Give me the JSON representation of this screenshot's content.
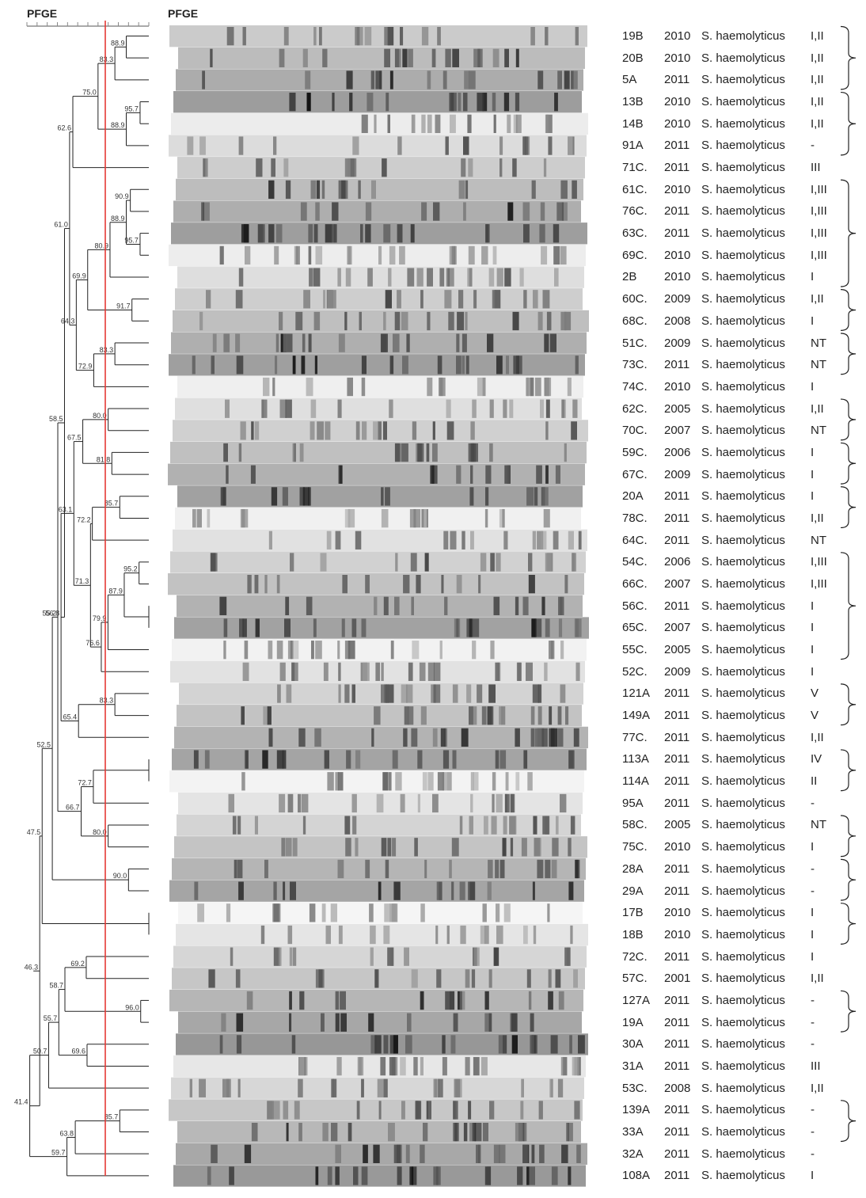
{
  "figure": {
    "dendrogram_title": "PFGE",
    "gel_title": "PFGE"
  },
  "isolates": [
    {
      "id": "19B",
      "year": "2010",
      "species": "S. haemolyticus",
      "type": "I,II"
    },
    {
      "id": "20B",
      "year": "2010",
      "species": "S. haemolyticus",
      "type": "I,II"
    },
    {
      "id": "5A",
      "year": "2011",
      "species": "S. haemolyticus",
      "type": "I,II"
    },
    {
      "id": "13B",
      "year": "2010",
      "species": "S. haemolyticus",
      "type": "I,II"
    },
    {
      "id": "14B",
      "year": "2010",
      "species": "S. haemolyticus",
      "type": "I,II"
    },
    {
      "id": "91A",
      "year": "2011",
      "species": "S. haemolyticus",
      "type": "-"
    },
    {
      "id": "71C.",
      "year": "2011",
      "species": "S. haemolyticus",
      "type": "III"
    },
    {
      "id": "61C.",
      "year": "2010",
      "species": "S. haemolyticus",
      "type": "I,III"
    },
    {
      "id": "76C.",
      "year": "2011",
      "species": "S. haemolyticus",
      "type": "I,III"
    },
    {
      "id": "63C.",
      "year": "2011",
      "species": "S. haemolyticus",
      "type": "I,III"
    },
    {
      "id": "69C.",
      "year": "2010",
      "species": "S. haemolyticus",
      "type": "I,III"
    },
    {
      "id": "2B",
      "year": "2010",
      "species": "S. haemolyticus",
      "type": "I"
    },
    {
      "id": "60C.",
      "year": "2009",
      "species": "S. haemolyticus",
      "type": "I,II"
    },
    {
      "id": "68C.",
      "year": "2008",
      "species": "S. haemolyticus",
      "type": "I"
    },
    {
      "id": "51C.",
      "year": "2009",
      "species": "S. haemolyticus",
      "type": "NT"
    },
    {
      "id": "73C.",
      "year": "2011",
      "species": "S. haemolyticus",
      "type": "NT"
    },
    {
      "id": "74C.",
      "year": "2010",
      "species": "S. haemolyticus",
      "type": "I"
    },
    {
      "id": "62C.",
      "year": "2005",
      "species": "S. haemolyticus",
      "type": "I,II"
    },
    {
      "id": "70C.",
      "year": "2007",
      "species": "S. haemolyticus",
      "type": "NT"
    },
    {
      "id": "59C.",
      "year": "2006",
      "species": "S. haemolyticus",
      "type": "I"
    },
    {
      "id": "67C.",
      "year": "2009",
      "species": "S. haemolyticus",
      "type": "I"
    },
    {
      "id": "20A",
      "year": "2011",
      "species": "S. haemolyticus",
      "type": "I"
    },
    {
      "id": "78C.",
      "year": "2011",
      "species": "S. haemolyticus",
      "type": "I,II"
    },
    {
      "id": "64C.",
      "year": "2011",
      "species": "S. haemolyticus",
      "type": "NT"
    },
    {
      "id": "54C.",
      "year": "2006",
      "species": "S. haemolyticus",
      "type": "I,III"
    },
    {
      "id": "66C.",
      "year": "2007",
      "species": "S. haemolyticus",
      "type": "I,III"
    },
    {
      "id": "56C.",
      "year": "2011",
      "species": "S. haemolyticus",
      "type": "I"
    },
    {
      "id": "65C.",
      "year": "2007",
      "species": "S. haemolyticus",
      "type": "I"
    },
    {
      "id": "55C.",
      "year": "2005",
      "species": "S. haemolyticus",
      "type": "I"
    },
    {
      "id": "52C.",
      "year": "2009",
      "species": "S. haemolyticus",
      "type": "I"
    },
    {
      "id": "121A",
      "year": "2011",
      "species": "S. haemolyticus",
      "type": "V"
    },
    {
      "id": "149A",
      "year": "2011",
      "species": "S. haemolyticus",
      "type": "V"
    },
    {
      "id": "77C.",
      "year": "2011",
      "species": "S. haemolyticus",
      "type": "I,II"
    },
    {
      "id": "113A",
      "year": "2011",
      "species": "S. haemolyticus",
      "type": "IV"
    },
    {
      "id": "114A",
      "year": "2011",
      "species": "S. haemolyticus",
      "type": "II"
    },
    {
      "id": "95A",
      "year": "2011",
      "species": "S. haemolyticus",
      "type": "-"
    },
    {
      "id": "58C.",
      "year": "2005",
      "species": "S. haemolyticus",
      "type": "NT"
    },
    {
      "id": "75C.",
      "year": "2010",
      "species": "S. haemolyticus",
      "type": "I"
    },
    {
      "id": "28A",
      "year": "2011",
      "species": "S. haemolyticus",
      "type": "-"
    },
    {
      "id": "29A",
      "year": "2011",
      "species": "S. haemolyticus",
      "type": "-"
    },
    {
      "id": "17B",
      "year": "2010",
      "species": "S. haemolyticus",
      "type": "I"
    },
    {
      "id": "18B",
      "year": "2010",
      "species": "S. haemolyticus",
      "type": "I"
    },
    {
      "id": "72C.",
      "year": "2011",
      "species": "S. haemolyticus",
      "type": "I"
    },
    {
      "id": "57C.",
      "year": "2001",
      "species": "S. haemolyticus",
      "type": "I,II"
    },
    {
      "id": "127A",
      "year": "2011",
      "species": "S. haemolyticus",
      "type": "-"
    },
    {
      "id": "19A",
      "year": "2011",
      "species": "S. haemolyticus",
      "type": "-"
    },
    {
      "id": "30A",
      "year": "2011",
      "species": "S. haemolyticus",
      "type": "-"
    },
    {
      "id": "31A",
      "year": "2011",
      "species": "S. haemolyticus",
      "type": "III"
    },
    {
      "id": "53C.",
      "year": "2008",
      "species": "S. haemolyticus",
      "type": "I,II"
    },
    {
      "id": "139A",
      "year": "2011",
      "species": "S. haemolyticus",
      "type": "-"
    },
    {
      "id": "33A",
      "year": "2011",
      "species": "S. haemolyticus",
      "type": "-"
    },
    {
      "id": "32A",
      "year": "2011",
      "species": "S. haemolyticus",
      "type": "-"
    },
    {
      "id": "108A",
      "year": "2011",
      "species": "S. haemolyticus",
      "type": "I"
    }
  ],
  "dendrogram": {
    "nodes": [
      {
        "name": "A",
        "sim": 88.9,
        "children": [
          0,
          1
        ],
        "label": "88.9"
      },
      {
        "name": "B",
        "sim": 83.3,
        "children": [
          "A",
          2
        ],
        "label": "83.3"
      },
      {
        "name": "C",
        "sim": 95.7,
        "children": [
          3,
          4
        ],
        "label": "95.7"
      },
      {
        "name": "D",
        "sim": 88.9,
        "children": [
          "C",
          5
        ],
        "label": "88.9"
      },
      {
        "name": "E",
        "sim": 75.0,
        "children": [
          "B",
          "D"
        ],
        "label": "75.0"
      },
      {
        "name": "F",
        "sim": 62.6,
        "children": [
          "E",
          6
        ],
        "label": "62.6"
      },
      {
        "name": "G",
        "sim": 90.9,
        "children": [
          7,
          8
        ],
        "label": "90.9"
      },
      {
        "name": "H",
        "sim": 95.7,
        "children": [
          9,
          10
        ],
        "label": "95.7"
      },
      {
        "name": "I",
        "sim": 88.9,
        "children": [
          "G",
          "H"
        ],
        "label": "88.9"
      },
      {
        "name": "J",
        "sim": 80.9,
        "children": [
          "I",
          11
        ],
        "label": "80.9"
      },
      {
        "name": "K",
        "sim": 91.7,
        "children": [
          12,
          13
        ],
        "label": "91.7"
      },
      {
        "name": "L",
        "sim": 69.9,
        "children": [
          "J",
          "K"
        ],
        "label": "69.9"
      },
      {
        "name": "M",
        "sim": 83.3,
        "children": [
          14,
          15
        ],
        "label": "83.3"
      },
      {
        "name": "N",
        "sim": 72.9,
        "children": [
          "M",
          16
        ],
        "label": "72.9"
      },
      {
        "name": "O",
        "sim": 64.3,
        "children": [
          "L",
          "N"
        ],
        "label": "64.3"
      },
      {
        "name": "P",
        "sim": 61.0,
        "children": [
          "F",
          "O"
        ],
        "label": "61.0"
      },
      {
        "name": "Q",
        "sim": 80.0,
        "children": [
          17,
          18
        ],
        "label": "80.0"
      },
      {
        "name": "R",
        "sim": 81.8,
        "children": [
          19,
          20
        ],
        "label": "81.8"
      },
      {
        "name": "S",
        "sim": 67.5,
        "children": [
          "Q",
          "R"
        ],
        "label": "67.5"
      },
      {
        "name": "T",
        "sim": 85.7,
        "children": [
          21,
          22
        ],
        "label": "85.7"
      },
      {
        "name": "U",
        "sim": 72.2,
        "children": [
          "T",
          23
        ],
        "label": "72.2"
      },
      {
        "name": "V",
        "sim": 95.2,
        "children": [
          24,
          25
        ],
        "label": "95.2"
      },
      {
        "name": "W",
        "sim": 100,
        "children": [
          26,
          27
        ],
        "label": ""
      },
      {
        "name": "X",
        "sim": 87.9,
        "children": [
          "V",
          "W"
        ],
        "label": "87.9"
      },
      {
        "name": "Y",
        "sim": 79.9,
        "children": [
          "X",
          28
        ],
        "label": "79.9"
      },
      {
        "name": "Z",
        "sim": 76.6,
        "children": [
          "Y",
          29
        ],
        "label": "76.6"
      },
      {
        "name": "AA",
        "sim": 71.3,
        "children": [
          "U",
          "Z"
        ],
        "label": "71.3"
      },
      {
        "name": "AB",
        "sim": 63.1,
        "children": [
          "S",
          "AA"
        ],
        "label": "63.1"
      },
      {
        "name": "AC",
        "sim": 83.3,
        "children": [
          30,
          31
        ],
        "label": "83.3"
      },
      {
        "name": "AD",
        "sim": 65.4,
        "children": [
          "AC",
          32
        ],
        "label": "65.4"
      },
      {
        "name": "AE",
        "sim": 56.8,
        "children": [
          "AB",
          "AD"
        ],
        "label": "56.8"
      },
      {
        "name": "AF",
        "sim": 58.5,
        "children": [
          "P",
          "AE"
        ],
        "label": "58.5"
      },
      {
        "name": "AG",
        "sim": 100,
        "children": [
          33,
          34
        ],
        "label": ""
      },
      {
        "name": "AH",
        "sim": 72.7,
        "children": [
          "AG",
          35
        ],
        "label": "72.7"
      },
      {
        "name": "AI",
        "sim": 80.0,
        "children": [
          36,
          37
        ],
        "label": "80.0"
      },
      {
        "name": "AJ",
        "sim": 66.7,
        "children": [
          "AH",
          "AI"
        ],
        "label": "66.7"
      },
      {
        "name": "AK",
        "sim": 55.2,
        "children": [
          "AF",
          "AJ"
        ],
        "label": "55.2"
      },
      {
        "name": "AL",
        "sim": 90.0,
        "children": [
          38,
          39
        ],
        "label": "90.0"
      },
      {
        "name": "AM",
        "sim": 52.5,
        "children": [
          "AK",
          "AL"
        ],
        "label": "52.5"
      },
      {
        "name": "AN",
        "sim": 100,
        "children": [
          40,
          41
        ],
        "label": ""
      },
      {
        "name": "AO",
        "sim": 47.5,
        "children": [
          "AM",
          "AN"
        ],
        "label": "47.5"
      },
      {
        "name": "AP",
        "sim": 69.2,
        "children": [
          42,
          43
        ],
        "label": "69.2"
      },
      {
        "name": "AQ",
        "sim": 96.0,
        "children": [
          44,
          45
        ],
        "label": "96.0"
      },
      {
        "name": "AR",
        "sim": 58.7,
        "children": [
          "AP",
          "AQ"
        ],
        "label": "58.7"
      },
      {
        "name": "AS",
        "sim": 69.6,
        "children": [
          46,
          47
        ],
        "label": "69.6"
      },
      {
        "name": "AT",
        "sim": 55.7,
        "children": [
          "AR",
          "AS"
        ],
        "label": "55.7"
      },
      {
        "name": "AU",
        "sim": 50.7,
        "children": [
          "AT",
          48
        ],
        "label": "50.7"
      },
      {
        "name": "AV",
        "sim": 85.7,
        "children": [
          49,
          50
        ],
        "label": "85.7"
      },
      {
        "name": "AW",
        "sim": 63.8,
        "children": [
          "AV",
          51
        ],
        "label": "63.8"
      },
      {
        "name": "AX",
        "sim": 59.7,
        "children": [
          "AW",
          52
        ],
        "label": "59.7"
      },
      {
        "name": "AY",
        "sim": 41.4,
        "children": [
          "AU",
          "AX"
        ],
        "label": "41.4"
      },
      {
        "name": "AZ",
        "sim": 46.3,
        "children": [
          "AO",
          "AY"
        ],
        "label": "46.3"
      }
    ],
    "cutoff_line_color": "#e53935"
  },
  "braces": [
    {
      "from": 0,
      "to": 2
    },
    {
      "from": 3,
      "to": 5
    },
    {
      "from": 7,
      "to": 11
    },
    {
      "from": 12,
      "to": 13
    },
    {
      "from": 14,
      "to": 15
    },
    {
      "from": 17,
      "to": 18
    },
    {
      "from": 19,
      "to": 20
    },
    {
      "from": 21,
      "to": 22
    },
    {
      "from": 24,
      "to": 28
    },
    {
      "from": 30,
      "to": 31
    },
    {
      "from": 33,
      "to": 34
    },
    {
      "from": 36,
      "to": 37
    },
    {
      "from": 38,
      "to": 39
    },
    {
      "from": 40,
      "to": 41
    },
    {
      "from": 44,
      "to": 45
    },
    {
      "from": 49,
      "to": 50
    }
  ]
}
